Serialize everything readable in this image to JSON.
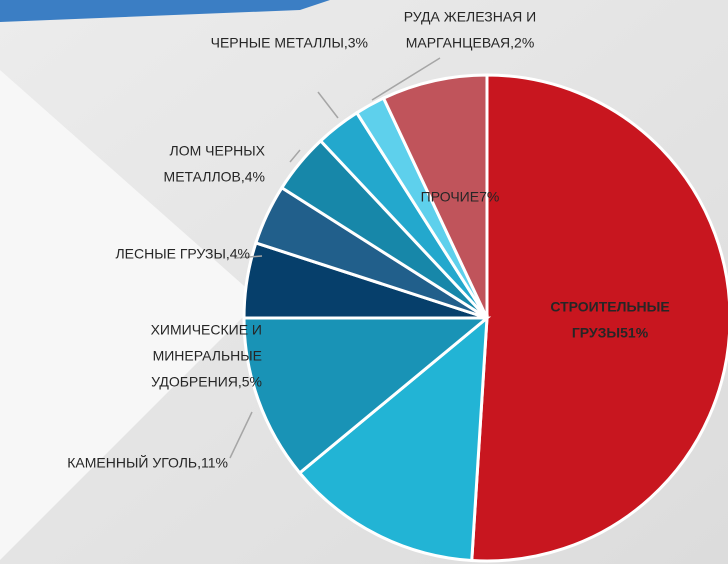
{
  "chart_data": {
    "type": "pie",
    "labels": [
      [
        "СТРОИТЕЛЬНЫЕ",
        "ГРУЗЫ51%"
      ],
      null,
      [
        "КАМЕННЫЙ УГОЛЬ,11%"
      ],
      [
        "ХИМИЧЕСКИЕ И",
        "МИНЕРАЛЬНЫЕ",
        "УДОБРЕНИЯ,5%"
      ],
      [
        "ЛЕСНЫЕ ГРУЗЫ,4%"
      ],
      [
        "ЛОМ ЧЕРНЫХ",
        "МЕТАЛЛОВ,4%"
      ],
      [
        "ЧЕРНЫЕ МЕТАЛЛЫ,3%"
      ],
      [
        "РУДА ЖЕЛЕЗНАЯ И",
        "МАРГАНЦЕВАЯ,2%"
      ],
      [
        "ПРОЧИЕ7%"
      ]
    ],
    "values": [
      51,
      13,
      11,
      5,
      4,
      4,
      3,
      2,
      7
    ],
    "colors": [
      "#c8161f",
      "#22b4d5",
      "#1993b6",
      "#063f6b",
      "#215f8b",
      "#1787a9",
      "#23a8cd",
      "#5ed0ec",
      "#c0545b"
    ]
  }
}
